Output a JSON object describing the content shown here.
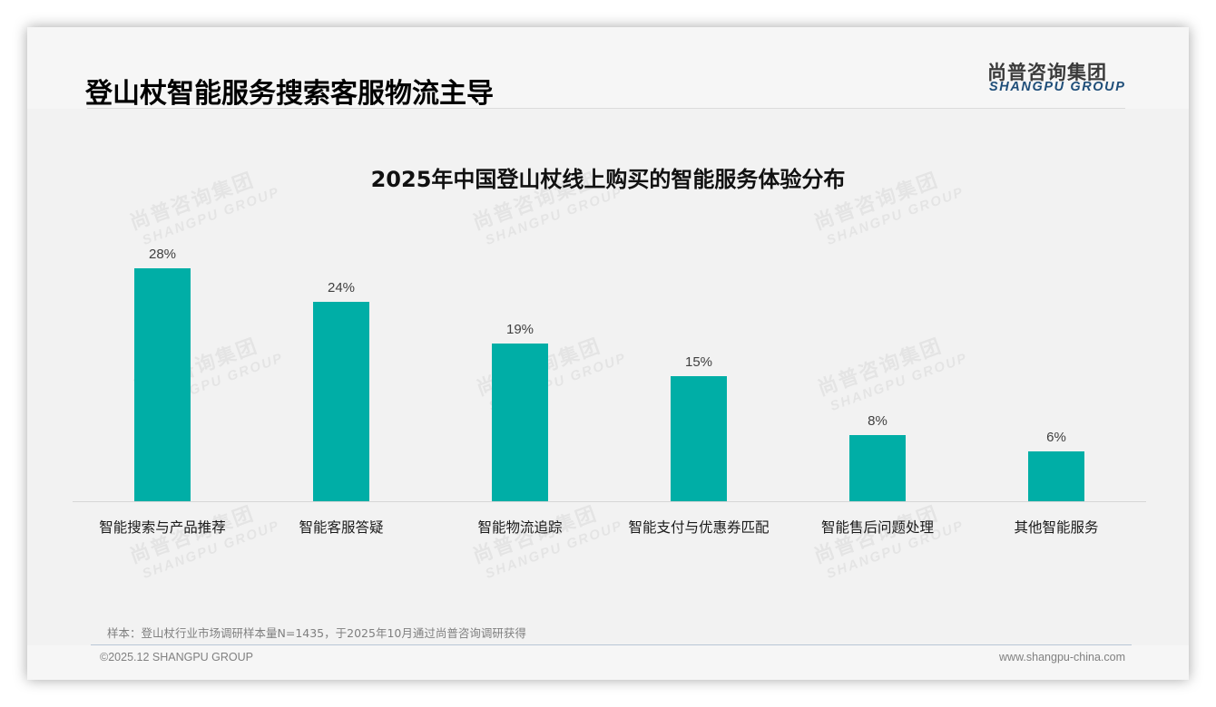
{
  "header": {
    "page_title": "登山杖智能服务搜索客服物流主导",
    "logo_cn": "尚普咨询集团",
    "logo_en": "SHANGPU GROUP"
  },
  "watermark": {
    "cn": "尚普咨询集团",
    "en": "SHANGPU GROUP"
  },
  "colors": {
    "bar": "#00aea6",
    "logo_en": "#1f4e79"
  },
  "chart_data": {
    "type": "bar",
    "title": "2025年中国登山杖线上购买的智能服务体验分布",
    "categories": [
      "智能搜索与产品推荐",
      "智能客服答疑",
      "智能物流追踪",
      "智能支付与优惠券匹配",
      "智能售后问题处理",
      "其他智能服务"
    ],
    "values": [
      28,
      24,
      19,
      15,
      8,
      6
    ],
    "value_labels": [
      "28%",
      "24%",
      "19%",
      "15%",
      "8%",
      "6%"
    ],
    "unit": "%",
    "xlabel": "",
    "ylabel": "",
    "ylim": [
      0,
      30
    ],
    "grid": false,
    "legend": "none",
    "data_labels": "above bars"
  },
  "footer": {
    "source_note": "样本：登山杖行业市场调研样本量N=1435，于2025年10月通过尚普咨询调研获得",
    "copyright": "©2025.12 SHANGPU GROUP",
    "website": "www.shangpu-china.com"
  }
}
